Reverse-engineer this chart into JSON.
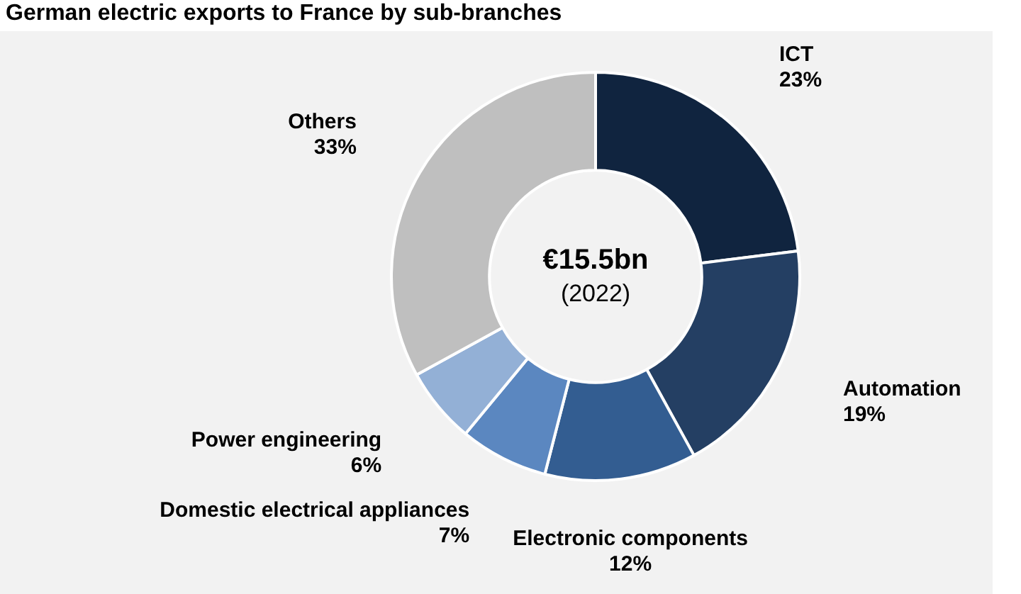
{
  "chart_data": {
    "type": "donut",
    "title": "German electric exports to France by sub-branches",
    "categories": [
      "ICT",
      "Automation",
      "Electronic components",
      "Domestic electrical appliances",
      "Power engineering",
      "Others"
    ],
    "values": [
      23,
      19,
      12,
      7,
      6,
      33
    ],
    "value_labels": [
      "23%",
      "19%",
      "12%",
      "7%",
      "6%",
      "33%"
    ],
    "colors": [
      "#10243f",
      "#243f63",
      "#335d91",
      "#5b87c0",
      "#93b0d6",
      "#bfbfbf"
    ],
    "annotations": [
      "€15.5bn",
      "(2022)"
    ],
    "legend": false
  }
}
